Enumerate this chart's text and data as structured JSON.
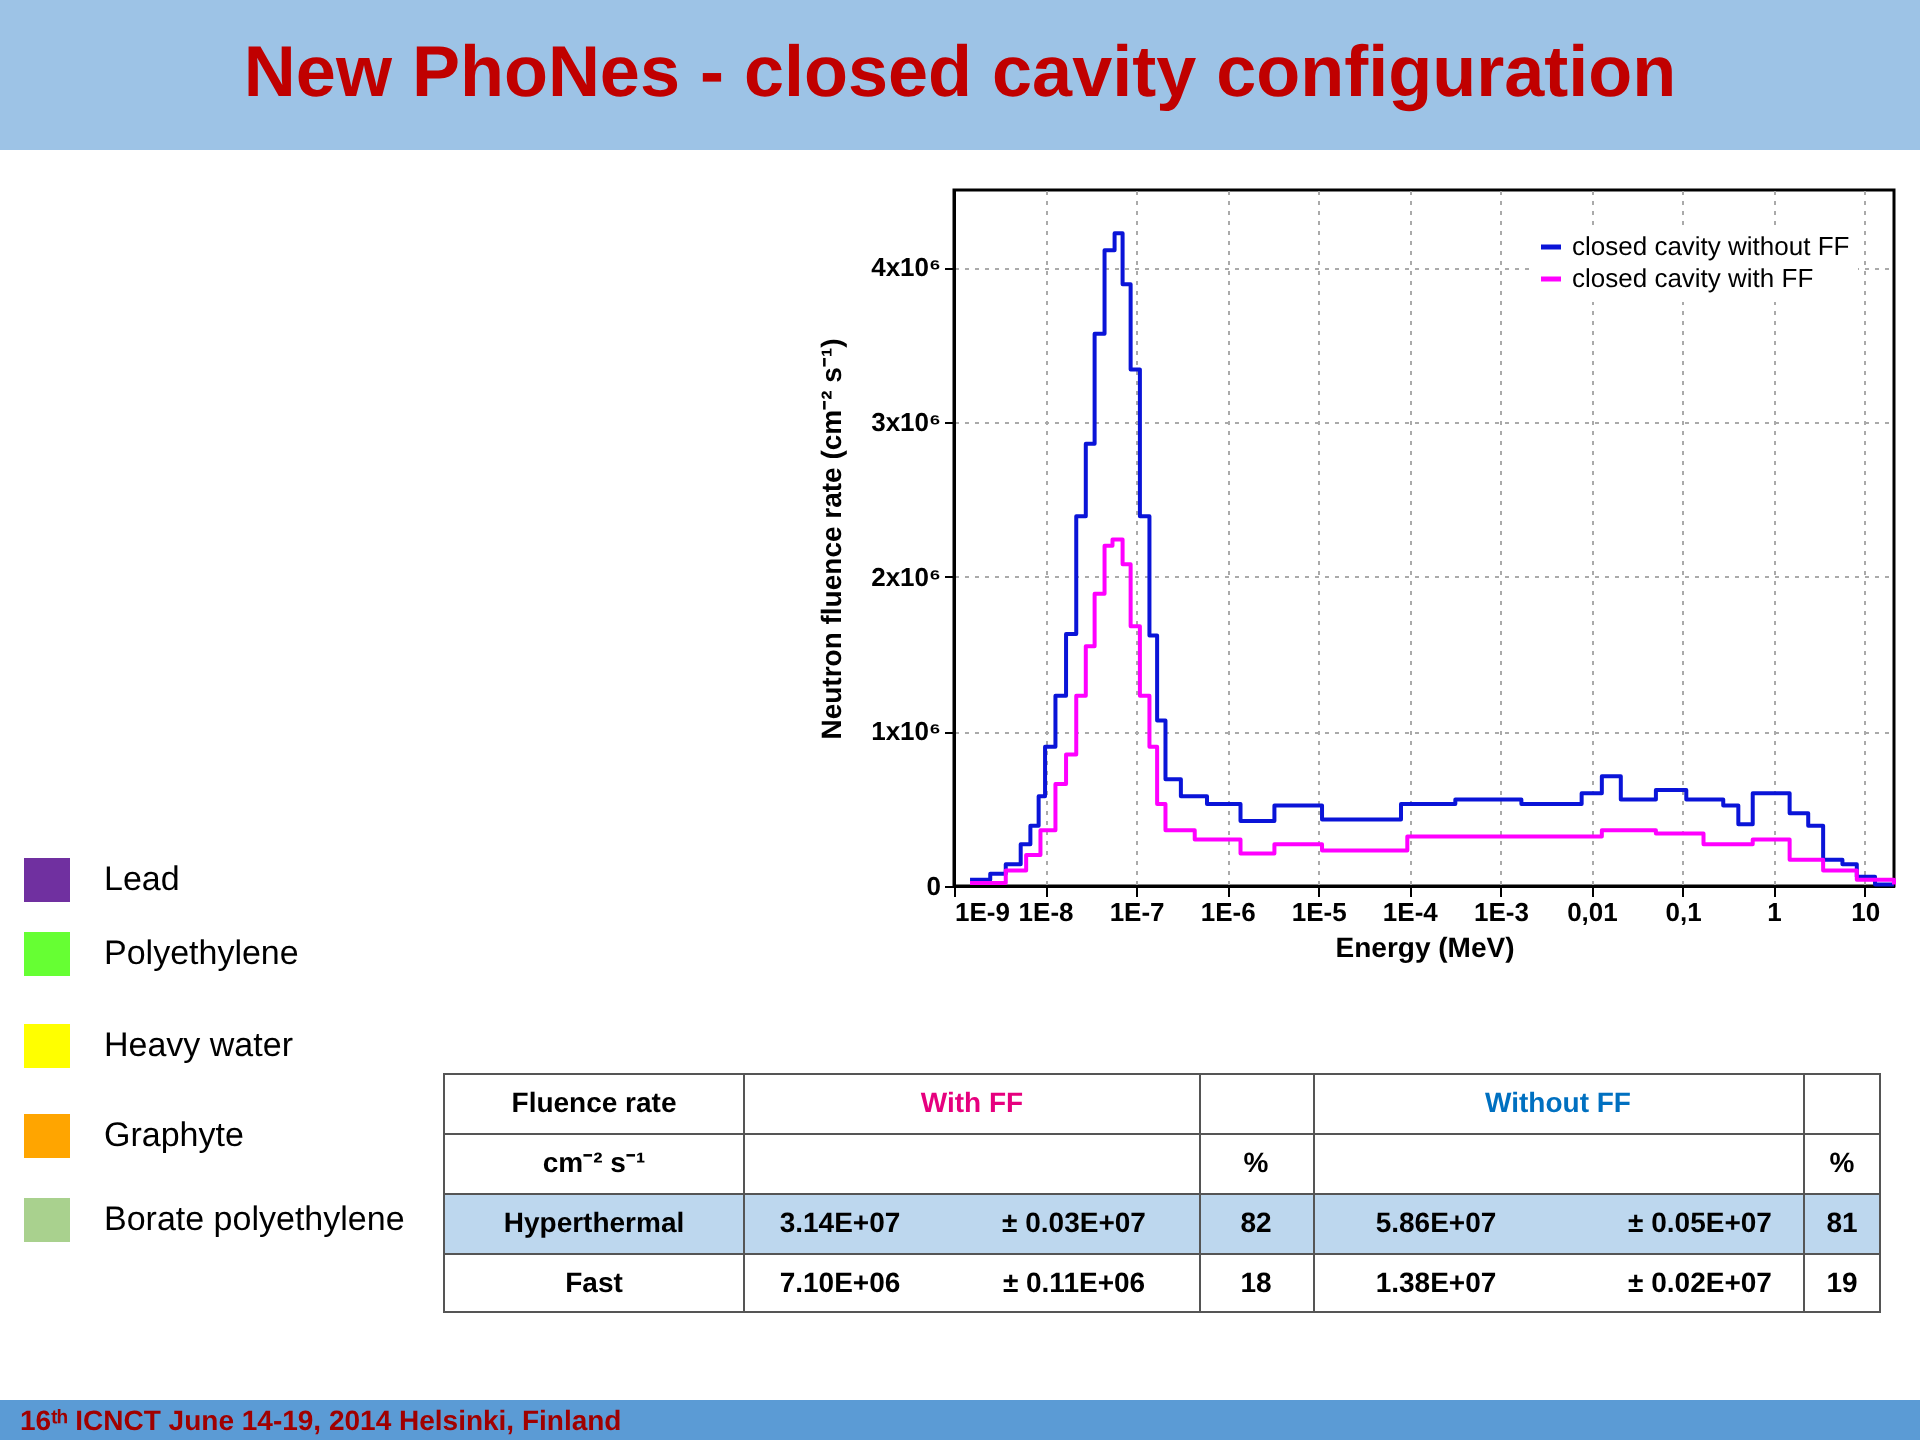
{
  "chart_data": {
    "type": "step",
    "title": "New PhoNes  - closed cavity configuration",
    "xlabel": "Energy (MeV)",
    "ylabel": "Neutron fluence rate (cm⁻² s⁻¹)",
    "log": "x",
    "grid": true,
    "legend": "top right",
    "xlim": [
      1e-09,
      21
    ],
    "ylim": [
      0,
      4500000
    ],
    "xticks": [
      {
        "value": 1e-09,
        "label": "1E-9"
      },
      {
        "value": 1e-08,
        "label": "1E-8"
      },
      {
        "value": 1e-07,
        "label": "1E-7"
      },
      {
        "value": 1e-06,
        "label": "1E-6"
      },
      {
        "value": 1e-05,
        "label": "1E-5"
      },
      {
        "value": 0.0001,
        "label": "1E-4"
      },
      {
        "value": 0.001,
        "label": "1E-3"
      },
      {
        "value": 0.01,
        "label": "0,01"
      },
      {
        "value": 0.1,
        "label": "0,1"
      },
      1,
      10
    ],
    "yticks": [
      0,
      {
        "value": 1000000,
        "label": "1x10⁶"
      },
      {
        "value": 2000000,
        "label": "2x10⁶"
      },
      {
        "value": 3000000,
        "label": "3x10⁶"
      },
      {
        "value": 4000000,
        "label": "4x10⁶"
      }
    ],
    "series": [
      {
        "name": "closed cavity without FF",
        "color": "#0a14d8",
        "x": [
          1.5e-09,
          2.5e-09,
          3.7e-09,
          5.4e-09,
          6.9e-09,
          8.5e-09,
          1e-08,
          1.3e-08,
          1.7e-08,
          2.2e-08,
          2.8e-08,
          3.5e-08,
          4.5e-08,
          5.8e-08,
          7.1e-08,
          8.7e-08,
          1.1e-07,
          1.4e-07,
          1.7e-07,
          2.1e-07,
          3.1e-07,
          6e-07,
          1.4e-06,
          3.3e-06,
          1.1e-05,
          8.1e-05,
          0.00032,
          0.0017,
          0.0078,
          0.013,
          0.021,
          0.051,
          0.11,
          0.28,
          0.41,
          0.59,
          1.5,
          2.4,
          3.5,
          5.7,
          8.2,
          13,
          21
        ],
        "values": [
          40000,
          80000,
          140000,
          270000,
          390000,
          580000,
          900000,
          1230000,
          1630000,
          2390000,
          2860000,
          3570000,
          4110000,
          4220000,
          3890000,
          3340000,
          2390000,
          1620000,
          1070000,
          690000,
          580000,
          530000,
          420000,
          520000,
          430000,
          530000,
          560000,
          530000,
          600000,
          710000,
          560000,
          620000,
          560000,
          520000,
          400000,
          600000,
          470000,
          390000,
          170000,
          140000,
          60000,
          10000,
          10000
        ]
      },
      {
        "name": "closed cavity with FF",
        "color": "#ff00ff",
        "x": [
          1.5e-09,
          3.7e-09,
          6.2e-09,
          8.9e-09,
          1.3e-08,
          1.7e-08,
          2.2e-08,
          2.8e-08,
          3.5e-08,
          4.5e-08,
          5.5e-08,
          7.1e-08,
          8.7e-08,
          1.1e-07,
          1.4e-07,
          1.7e-07,
          2.1e-07,
          4.4e-07,
          1.4e-06,
          3.3e-06,
          1.1e-05,
          9.5e-05,
          0.0017,
          0.013,
          0.051,
          0.17,
          0.59,
          1.5,
          3.5,
          8.2,
          21
        ],
        "values": [
          20000,
          100000,
          200000,
          360000,
          660000,
          850000,
          1230000,
          1550000,
          1890000,
          2200000,
          2240000,
          2080000,
          1680000,
          1230000,
          900000,
          530000,
          360000,
          300000,
          210000,
          270000,
          230000,
          320000,
          320000,
          360000,
          340000,
          270000,
          300000,
          170000,
          100000,
          40000,
          10000
        ]
      }
    ],
    "annotations": [
      "Lead",
      "Polyethylene",
      "Heavy water",
      "Graphyte",
      "Borate polyethylene",
      "Fluence rate",
      "With FF",
      "Without FF",
      "cm⁻² s⁻¹",
      "%",
      "%",
      "Hyperthermal",
      "3.14E+07",
      "± 0.03E+07",
      "82",
      "5.86E+07",
      "± 0.05E+07",
      "81",
      "Fast",
      "7.10E+06",
      "± 0.11E+06",
      "18",
      "1.38E+07",
      "± 0.02E+07",
      "19",
      "16ᵗʰ ICNCT    June 14-19, 2014 Helsinki, Finland"
    ]
  }
}
